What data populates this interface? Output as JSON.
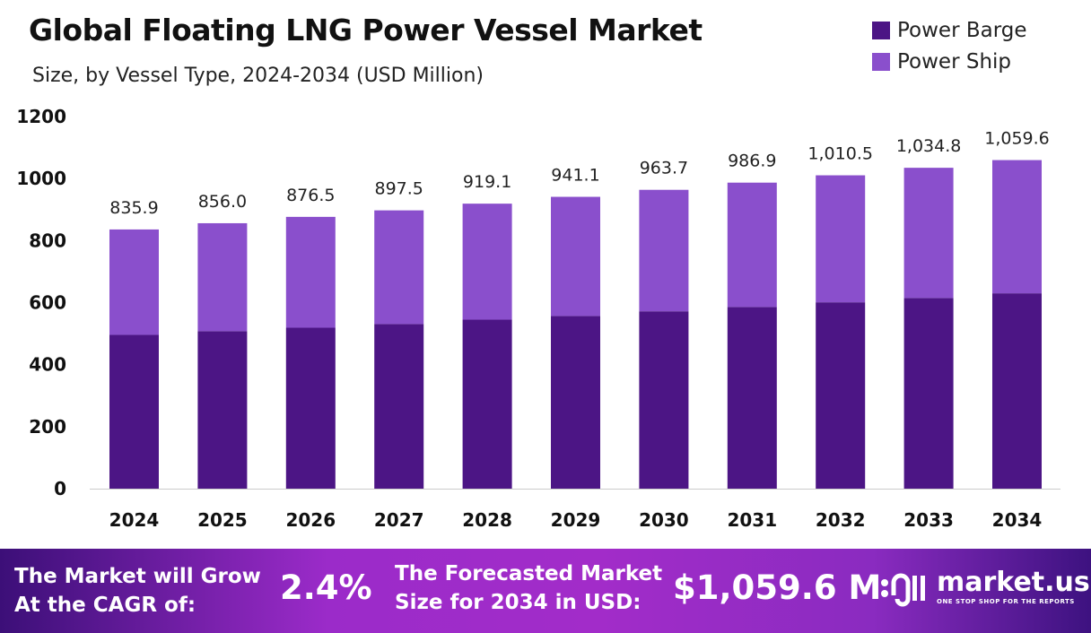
{
  "chart_data": {
    "type": "bar",
    "stacked": true,
    "title": "Global Floating LNG Power Vessel Market",
    "subtitle": "Size, by Vessel Type, 2024-2034 (USD Million)",
    "categories": [
      "2024",
      "2025",
      "2026",
      "2027",
      "2028",
      "2029",
      "2030",
      "2031",
      "2032",
      "2033",
      "2034"
    ],
    "series": [
      {
        "name": "Power Barge",
        "color": "#4c1585",
        "values": [
          496,
          508,
          519,
          531,
          545,
          557,
          572,
          586,
          601,
          615,
          630
        ]
      },
      {
        "name": "Power Ship",
        "color": "#8a4fcc",
        "values": [
          339.9,
          348.0,
          357.5,
          366.5,
          374.1,
          384.1,
          391.7,
          400.9,
          409.5,
          419.8,
          429.6
        ]
      }
    ],
    "totals": [
      "835.9",
      "856.0",
      "876.5",
      "897.5",
      "919.1",
      "941.1",
      "963.7",
      "986.9",
      "1,010.5",
      "1,034.8",
      "1,059.6"
    ],
    "total_values": [
      835.9,
      856.0,
      876.5,
      897.5,
      919.1,
      941.1,
      963.7,
      986.9,
      1010.5,
      1034.8,
      1059.6
    ],
    "yticks": [
      "0",
      "200",
      "400",
      "600",
      "800",
      "1000",
      "1200"
    ],
    "ylim": [
      0,
      1200
    ],
    "grid": false,
    "legend": "top-right"
  },
  "footer": {
    "cagr_label_1": "The Market will Grow",
    "cagr_label_2": "At the CAGR of:",
    "cagr_value": "2.4%",
    "forecast_label_1": "The Forecasted Market",
    "forecast_label_2": "Size for 2034 in USD:",
    "forecast_value": "$1,059.6 M",
    "logo_name": "market.us",
    "logo_tagline": "ONE STOP SHOP FOR THE REPORTS"
  }
}
